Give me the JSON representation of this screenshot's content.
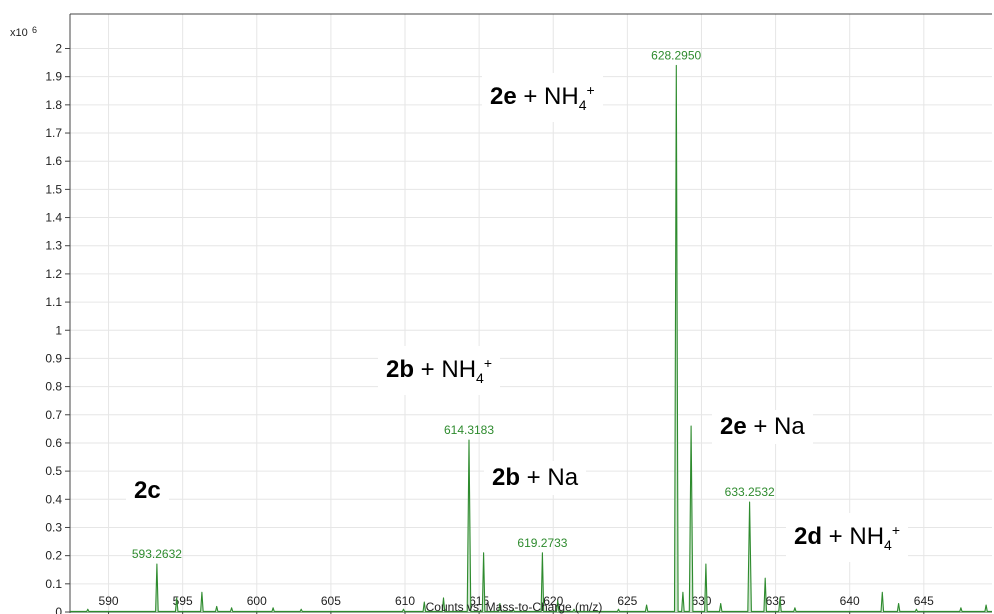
{
  "chart_data": {
    "type": "line",
    "xlabel": "Counts vs. Mass-to-Charge (m/z)",
    "ylabel": "",
    "y_multiplier": "x10",
    "y_exponent": "6",
    "xlim": [
      587.4,
      649.6
    ],
    "ylim": [
      0,
      2.05
    ],
    "x_ticks": [
      "590",
      "595",
      "600",
      "605",
      "610",
      "615",
      "620",
      "625",
      "630",
      "635",
      "640",
      "645"
    ],
    "y_ticks": [
      "0",
      "0.1",
      "0.2",
      "0.3",
      "0.4",
      "0.5",
      "0.6",
      "0.7",
      "0.8",
      "0.9",
      "1",
      "1.1",
      "1.2",
      "1.3",
      "1.4",
      "1.5",
      "1.6",
      "1.7",
      "1.8",
      "1.9",
      "2"
    ],
    "grid": true,
    "line_color": "#2e8b2e",
    "series": [
      {
        "peaks": [
          {
            "x": 588.6,
            "y": 0.01
          },
          {
            "x": 593.26,
            "y": 0.17
          },
          {
            "x": 594.6,
            "y": 0.05
          },
          {
            "x": 596.3,
            "y": 0.07
          },
          {
            "x": 597.3,
            "y": 0.02
          },
          {
            "x": 598.3,
            "y": 0.015
          },
          {
            "x": 601.1,
            "y": 0.015
          },
          {
            "x": 603.0,
            "y": 0.01
          },
          {
            "x": 609.9,
            "y": 0.01
          },
          {
            "x": 611.3,
            "y": 0.035
          },
          {
            "x": 612.6,
            "y": 0.05
          },
          {
            "x": 614.32,
            "y": 0.61
          },
          {
            "x": 615.3,
            "y": 0.21
          },
          {
            "x": 616.4,
            "y": 0.03
          },
          {
            "x": 617.3,
            "y": 0.01
          },
          {
            "x": 619.27,
            "y": 0.21
          },
          {
            "x": 620.3,
            "y": 0.04
          },
          {
            "x": 621.4,
            "y": 0.01
          },
          {
            "x": 624.4,
            "y": 0.01
          },
          {
            "x": 626.3,
            "y": 0.025
          },
          {
            "x": 628.3,
            "y": 1.94
          },
          {
            "x": 628.75,
            "y": 0.07
          },
          {
            "x": 629.3,
            "y": 0.66
          },
          {
            "x": 630.3,
            "y": 0.17
          },
          {
            "x": 631.3,
            "y": 0.03
          },
          {
            "x": 633.25,
            "y": 0.39
          },
          {
            "x": 634.3,
            "y": 0.12
          },
          {
            "x": 635.3,
            "y": 0.05
          },
          {
            "x": 636.3,
            "y": 0.015
          },
          {
            "x": 642.2,
            "y": 0.07
          },
          {
            "x": 643.3,
            "y": 0.03
          },
          {
            "x": 644.5,
            "y": 0.01
          },
          {
            "x": 647.5,
            "y": 0.015
          },
          {
            "x": 649.2,
            "y": 0.025
          }
        ]
      }
    ],
    "peak_labels": [
      {
        "text": "593.2632",
        "x": 593.2632,
        "y": 0.17
      },
      {
        "text": "614.3183",
        "x": 614.3183,
        "y": 0.61
      },
      {
        "text": "619.2733",
        "x": 619.2733,
        "y": 0.21
      },
      {
        "text": "628.2950",
        "x": 628.295,
        "y": 1.94
      },
      {
        "text": "633.2532",
        "x": 633.2532,
        "y": 0.39
      }
    ]
  },
  "annotations": {
    "ann_2c": {
      "compound": "2c"
    },
    "ann_2b_nh4": {
      "compound": "2b",
      "plus": " + NH",
      "sub": "4",
      "sup": "+"
    },
    "ann_2b_na": {
      "compound": "2b",
      "plus": " + Na"
    },
    "ann_2e_nh4": {
      "compound": "2e",
      "plus": " + NH",
      "sub": "4",
      "sup": "+"
    },
    "ann_2e_na": {
      "compound": "2e",
      "plus": " + Na"
    },
    "ann_2d_nh4": {
      "compound": "2d",
      "plus": " + NH",
      "sub": "4",
      "sup": "+"
    }
  }
}
